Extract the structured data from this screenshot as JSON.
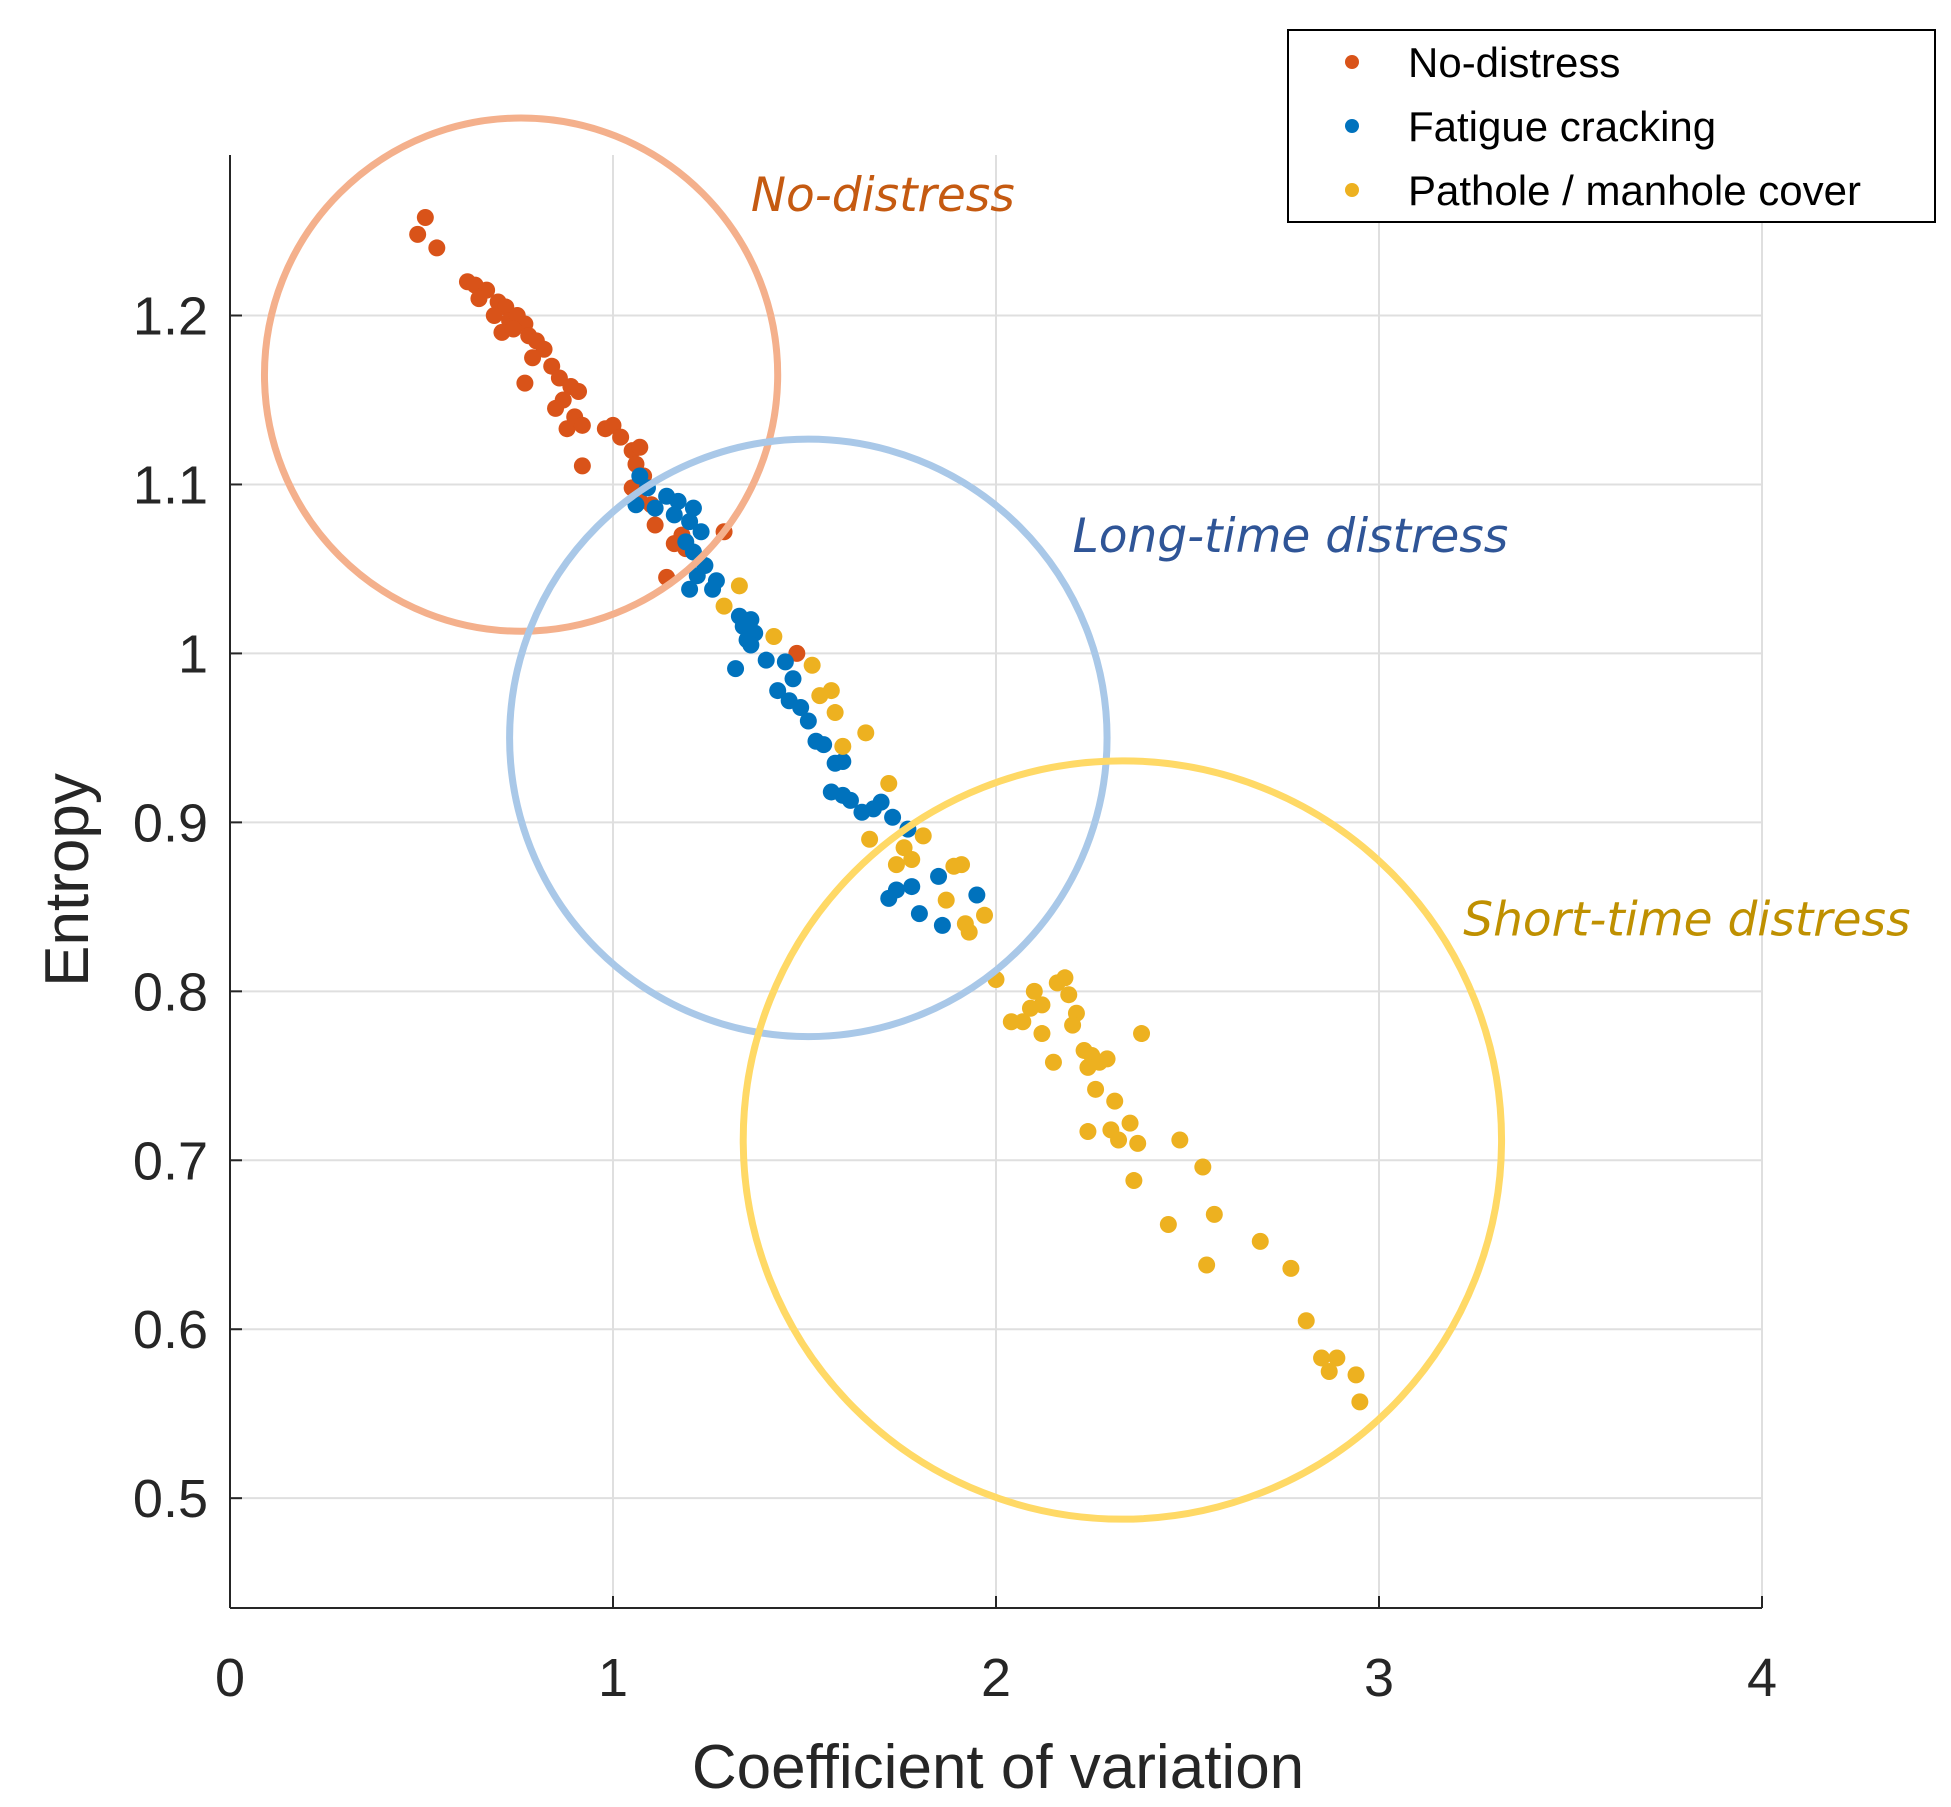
{
  "chart_data": {
    "type": "scatter",
    "title": "",
    "xlabel": "Coefficient of variation",
    "ylabel": "Entropy",
    "xlim": [
      0,
      4
    ],
    "ylim": [
      0.435,
      1.295
    ],
    "xticks": [
      0,
      1,
      2,
      3,
      4
    ],
    "xtick_labels": [
      "0",
      "1",
      "2",
      "3",
      "4"
    ],
    "yticks": [
      0.5,
      0.6,
      0.7,
      0.8,
      0.9,
      1.0,
      1.1,
      1.2
    ],
    "ytick_labels": [
      "0.5",
      "0.6",
      "0.7",
      "0.8",
      "0.9",
      "1",
      "1.1",
      "1.2"
    ],
    "grid": true,
    "legend_position": "top-right",
    "series": [
      {
        "name": "No-distress",
        "color": "#D95319",
        "points": [
          [
            0.51,
            1.258
          ],
          [
            0.49,
            1.248
          ],
          [
            0.54,
            1.24
          ],
          [
            0.62,
            1.22
          ],
          [
            0.64,
            1.218
          ],
          [
            0.67,
            1.215
          ],
          [
            0.65,
            1.21
          ],
          [
            0.7,
            1.208
          ],
          [
            0.72,
            1.205
          ],
          [
            0.69,
            1.2
          ],
          [
            0.73,
            1.197
          ],
          [
            0.75,
            1.2
          ],
          [
            0.77,
            1.195
          ],
          [
            0.71,
            1.19
          ],
          [
            0.74,
            1.192
          ],
          [
            0.78,
            1.188
          ],
          [
            0.8,
            1.185
          ],
          [
            0.82,
            1.18
          ],
          [
            0.79,
            1.175
          ],
          [
            0.84,
            1.17
          ],
          [
            0.86,
            1.163
          ],
          [
            0.77,
            1.16
          ],
          [
            0.89,
            1.158
          ],
          [
            0.91,
            1.155
          ],
          [
            0.87,
            1.15
          ],
          [
            0.85,
            1.145
          ],
          [
            0.9,
            1.14
          ],
          [
            0.88,
            1.133
          ],
          [
            0.92,
            1.135
          ],
          [
            0.98,
            1.133
          ],
          [
            1.0,
            1.135
          ],
          [
            1.02,
            1.128
          ],
          [
            1.05,
            1.12
          ],
          [
            1.07,
            1.122
          ],
          [
            1.06,
            1.112
          ],
          [
            0.92,
            1.111
          ],
          [
            1.08,
            1.105
          ],
          [
            1.05,
            1.098
          ],
          [
            1.07,
            1.09
          ],
          [
            1.1,
            1.088
          ],
          [
            1.11,
            1.076
          ],
          [
            1.18,
            1.07
          ],
          [
            1.29,
            1.072
          ],
          [
            1.16,
            1.065
          ],
          [
            1.19,
            1.062
          ],
          [
            1.14,
            1.045
          ],
          [
            1.48,
            1.0
          ]
        ]
      },
      {
        "name": "Fatigue cracking",
        "color": "#0072BD",
        "points": [
          [
            1.07,
            1.105
          ],
          [
            1.09,
            1.098
          ],
          [
            1.14,
            1.093
          ],
          [
            1.17,
            1.09
          ],
          [
            1.21,
            1.086
          ],
          [
            1.06,
            1.088
          ],
          [
            1.11,
            1.086
          ],
          [
            1.16,
            1.082
          ],
          [
            1.2,
            1.078
          ],
          [
            1.23,
            1.072
          ],
          [
            1.19,
            1.066
          ],
          [
            1.21,
            1.06
          ],
          [
            1.24,
            1.052
          ],
          [
            1.22,
            1.046
          ],
          [
            1.27,
            1.043
          ],
          [
            1.26,
            1.038
          ],
          [
            1.2,
            1.038
          ],
          [
            1.33,
            1.022
          ],
          [
            1.36,
            1.02
          ],
          [
            1.34,
            1.016
          ],
          [
            1.37,
            1.012
          ],
          [
            1.35,
            1.008
          ],
          [
            1.36,
            1.005
          ],
          [
            1.32,
            0.991
          ],
          [
            1.4,
            0.996
          ],
          [
            1.45,
            0.995
          ],
          [
            1.47,
            0.985
          ],
          [
            1.43,
            0.978
          ],
          [
            1.46,
            0.972
          ],
          [
            1.49,
            0.968
          ],
          [
            1.51,
            0.96
          ],
          [
            1.53,
            0.948
          ],
          [
            1.55,
            0.946
          ],
          [
            1.58,
            0.935
          ],
          [
            1.6,
            0.936
          ],
          [
            1.57,
            0.918
          ],
          [
            1.6,
            0.916
          ],
          [
            1.62,
            0.913
          ],
          [
            1.65,
            0.906
          ],
          [
            1.68,
            0.908
          ],
          [
            1.7,
            0.912
          ],
          [
            1.73,
            0.903
          ],
          [
            1.77,
            0.896
          ],
          [
            1.74,
            0.86
          ],
          [
            1.78,
            0.862
          ],
          [
            1.72,
            0.855
          ],
          [
            1.85,
            0.868
          ],
          [
            1.8,
            0.846
          ],
          [
            1.86,
            0.839
          ],
          [
            1.95,
            0.857
          ]
        ]
      },
      {
        "name": "Pathole / manhole cover",
        "color": "#EDB120",
        "points": [
          [
            1.33,
            1.04
          ],
          [
            1.29,
            1.028
          ],
          [
            1.42,
            1.01
          ],
          [
            1.52,
            0.993
          ],
          [
            1.57,
            0.978
          ],
          [
            1.54,
            0.975
          ],
          [
            1.58,
            0.965
          ],
          [
            1.66,
            0.953
          ],
          [
            1.6,
            0.945
          ],
          [
            1.72,
            0.923
          ],
          [
            1.67,
            0.89
          ],
          [
            1.76,
            0.885
          ],
          [
            1.81,
            0.892
          ],
          [
            1.78,
            0.878
          ],
          [
            1.74,
            0.875
          ],
          [
            1.89,
            0.874
          ],
          [
            1.91,
            0.875
          ],
          [
            1.87,
            0.854
          ],
          [
            1.92,
            0.84
          ],
          [
            1.97,
            0.845
          ],
          [
            1.93,
            0.835
          ],
          [
            2.0,
            0.807
          ],
          [
            2.1,
            0.8
          ],
          [
            2.12,
            0.792
          ],
          [
            2.16,
            0.805
          ],
          [
            2.18,
            0.808
          ],
          [
            2.19,
            0.798
          ],
          [
            2.21,
            0.787
          ],
          [
            2.09,
            0.79
          ],
          [
            2.07,
            0.782
          ],
          [
            2.04,
            0.782
          ],
          [
            2.12,
            0.775
          ],
          [
            2.2,
            0.78
          ],
          [
            2.38,
            0.775
          ],
          [
            2.23,
            0.765
          ],
          [
            2.25,
            0.762
          ],
          [
            2.29,
            0.76
          ],
          [
            2.27,
            0.758
          ],
          [
            2.15,
            0.758
          ],
          [
            2.24,
            0.755
          ],
          [
            2.26,
            0.742
          ],
          [
            2.31,
            0.735
          ],
          [
            2.35,
            0.722
          ],
          [
            2.24,
            0.717
          ],
          [
            2.3,
            0.718
          ],
          [
            2.32,
            0.712
          ],
          [
            2.37,
            0.71
          ],
          [
            2.48,
            0.712
          ],
          [
            2.36,
            0.688
          ],
          [
            2.54,
            0.696
          ],
          [
            2.57,
            0.668
          ],
          [
            2.45,
            0.662
          ],
          [
            2.69,
            0.652
          ],
          [
            2.55,
            0.638
          ],
          [
            2.77,
            0.636
          ],
          [
            2.81,
            0.605
          ],
          [
            2.85,
            0.583
          ],
          [
            2.89,
            0.583
          ],
          [
            2.87,
            0.575
          ],
          [
            2.94,
            0.573
          ],
          [
            2.95,
            0.557
          ]
        ]
      }
    ],
    "regions": [
      {
        "label": "No-distress",
        "cx": 0.76,
        "cy": 1.165,
        "r": 0.67,
        "color": "#F4B08C",
        "label_color": "#C55A11",
        "label_x": 1.36,
        "label_y": 1.262
      },
      {
        "label": "Long-time distress",
        "cx": 1.51,
        "cy": 0.95,
        "r": 0.78,
        "color": "#A9C8E8",
        "label_color": "#2F5597",
        "label_x": 2.2,
        "label_y": 1.06
      },
      {
        "label": "Short-time distress",
        "cx": 2.33,
        "cy": 0.712,
        "r": 0.99,
        "color": "#FFD966",
        "label_color": "#BF9000",
        "label_x": 3.22,
        "label_y": 0.833
      }
    ]
  }
}
